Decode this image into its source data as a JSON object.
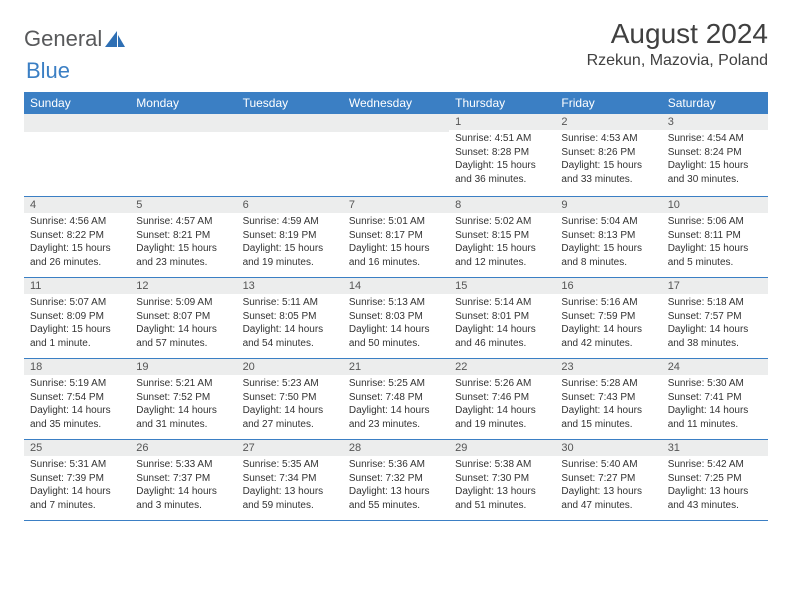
{
  "logo": {
    "text_a": "General",
    "text_b": "Blue"
  },
  "title": "August 2024",
  "location": "Rzekun, Mazovia, Poland",
  "colors": {
    "header_bg": "#3b7fc4",
    "header_text": "#ffffff",
    "daynum_bg": "#eceded",
    "body_text": "#333333",
    "title_text": "#404040",
    "rule": "#3b7fc4"
  },
  "typography": {
    "title_fontsize": 28,
    "location_fontsize": 16,
    "dayhead_fontsize": 12,
    "cell_fontsize": 10
  },
  "day_headers": [
    "Sunday",
    "Monday",
    "Tuesday",
    "Wednesday",
    "Thursday",
    "Friday",
    "Saturday"
  ],
  "weeks": [
    [
      {
        "num": "",
        "lines": [
          "",
          "",
          ""
        ]
      },
      {
        "num": "",
        "lines": [
          "",
          "",
          ""
        ]
      },
      {
        "num": "",
        "lines": [
          "",
          "",
          ""
        ]
      },
      {
        "num": "",
        "lines": [
          "",
          "",
          ""
        ]
      },
      {
        "num": "1",
        "lines": [
          "Sunrise: 4:51 AM",
          "Sunset: 8:28 PM",
          "Daylight: 15 hours and 36 minutes."
        ]
      },
      {
        "num": "2",
        "lines": [
          "Sunrise: 4:53 AM",
          "Sunset: 8:26 PM",
          "Daylight: 15 hours and 33 minutes."
        ]
      },
      {
        "num": "3",
        "lines": [
          "Sunrise: 4:54 AM",
          "Sunset: 8:24 PM",
          "Daylight: 15 hours and 30 minutes."
        ]
      }
    ],
    [
      {
        "num": "4",
        "lines": [
          "Sunrise: 4:56 AM",
          "Sunset: 8:22 PM",
          "Daylight: 15 hours and 26 minutes."
        ]
      },
      {
        "num": "5",
        "lines": [
          "Sunrise: 4:57 AM",
          "Sunset: 8:21 PM",
          "Daylight: 15 hours and 23 minutes."
        ]
      },
      {
        "num": "6",
        "lines": [
          "Sunrise: 4:59 AM",
          "Sunset: 8:19 PM",
          "Daylight: 15 hours and 19 minutes."
        ]
      },
      {
        "num": "7",
        "lines": [
          "Sunrise: 5:01 AM",
          "Sunset: 8:17 PM",
          "Daylight: 15 hours and 16 minutes."
        ]
      },
      {
        "num": "8",
        "lines": [
          "Sunrise: 5:02 AM",
          "Sunset: 8:15 PM",
          "Daylight: 15 hours and 12 minutes."
        ]
      },
      {
        "num": "9",
        "lines": [
          "Sunrise: 5:04 AM",
          "Sunset: 8:13 PM",
          "Daylight: 15 hours and 8 minutes."
        ]
      },
      {
        "num": "10",
        "lines": [
          "Sunrise: 5:06 AM",
          "Sunset: 8:11 PM",
          "Daylight: 15 hours and 5 minutes."
        ]
      }
    ],
    [
      {
        "num": "11",
        "lines": [
          "Sunrise: 5:07 AM",
          "Sunset: 8:09 PM",
          "Daylight: 15 hours and 1 minute."
        ]
      },
      {
        "num": "12",
        "lines": [
          "Sunrise: 5:09 AM",
          "Sunset: 8:07 PM",
          "Daylight: 14 hours and 57 minutes."
        ]
      },
      {
        "num": "13",
        "lines": [
          "Sunrise: 5:11 AM",
          "Sunset: 8:05 PM",
          "Daylight: 14 hours and 54 minutes."
        ]
      },
      {
        "num": "14",
        "lines": [
          "Sunrise: 5:13 AM",
          "Sunset: 8:03 PM",
          "Daylight: 14 hours and 50 minutes."
        ]
      },
      {
        "num": "15",
        "lines": [
          "Sunrise: 5:14 AM",
          "Sunset: 8:01 PM",
          "Daylight: 14 hours and 46 minutes."
        ]
      },
      {
        "num": "16",
        "lines": [
          "Sunrise: 5:16 AM",
          "Sunset: 7:59 PM",
          "Daylight: 14 hours and 42 minutes."
        ]
      },
      {
        "num": "17",
        "lines": [
          "Sunrise: 5:18 AM",
          "Sunset: 7:57 PM",
          "Daylight: 14 hours and 38 minutes."
        ]
      }
    ],
    [
      {
        "num": "18",
        "lines": [
          "Sunrise: 5:19 AM",
          "Sunset: 7:54 PM",
          "Daylight: 14 hours and 35 minutes."
        ]
      },
      {
        "num": "19",
        "lines": [
          "Sunrise: 5:21 AM",
          "Sunset: 7:52 PM",
          "Daylight: 14 hours and 31 minutes."
        ]
      },
      {
        "num": "20",
        "lines": [
          "Sunrise: 5:23 AM",
          "Sunset: 7:50 PM",
          "Daylight: 14 hours and 27 minutes."
        ]
      },
      {
        "num": "21",
        "lines": [
          "Sunrise: 5:25 AM",
          "Sunset: 7:48 PM",
          "Daylight: 14 hours and 23 minutes."
        ]
      },
      {
        "num": "22",
        "lines": [
          "Sunrise: 5:26 AM",
          "Sunset: 7:46 PM",
          "Daylight: 14 hours and 19 minutes."
        ]
      },
      {
        "num": "23",
        "lines": [
          "Sunrise: 5:28 AM",
          "Sunset: 7:43 PM",
          "Daylight: 14 hours and 15 minutes."
        ]
      },
      {
        "num": "24",
        "lines": [
          "Sunrise: 5:30 AM",
          "Sunset: 7:41 PM",
          "Daylight: 14 hours and 11 minutes."
        ]
      }
    ],
    [
      {
        "num": "25",
        "lines": [
          "Sunrise: 5:31 AM",
          "Sunset: 7:39 PM",
          "Daylight: 14 hours and 7 minutes."
        ]
      },
      {
        "num": "26",
        "lines": [
          "Sunrise: 5:33 AM",
          "Sunset: 7:37 PM",
          "Daylight: 14 hours and 3 minutes."
        ]
      },
      {
        "num": "27",
        "lines": [
          "Sunrise: 5:35 AM",
          "Sunset: 7:34 PM",
          "Daylight: 13 hours and 59 minutes."
        ]
      },
      {
        "num": "28",
        "lines": [
          "Sunrise: 5:36 AM",
          "Sunset: 7:32 PM",
          "Daylight: 13 hours and 55 minutes."
        ]
      },
      {
        "num": "29",
        "lines": [
          "Sunrise: 5:38 AM",
          "Sunset: 7:30 PM",
          "Daylight: 13 hours and 51 minutes."
        ]
      },
      {
        "num": "30",
        "lines": [
          "Sunrise: 5:40 AM",
          "Sunset: 7:27 PM",
          "Daylight: 13 hours and 47 minutes."
        ]
      },
      {
        "num": "31",
        "lines": [
          "Sunrise: 5:42 AM",
          "Sunset: 7:25 PM",
          "Daylight: 13 hours and 43 minutes."
        ]
      }
    ]
  ]
}
